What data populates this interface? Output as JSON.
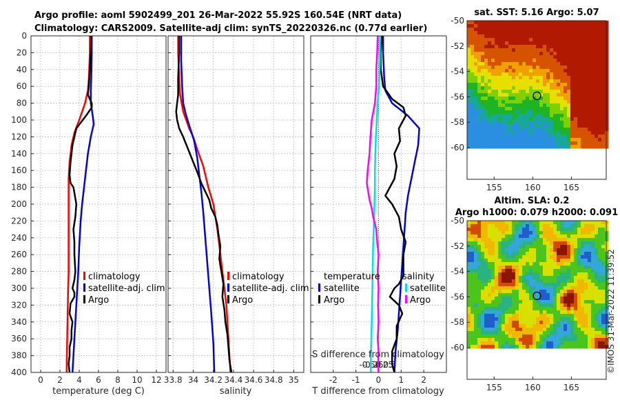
{
  "header": {
    "line1": "Argo profile: aoml 5902499_201 26-Mar-2022 55.92S 160.54E (NRT data)",
    "line2": "Climatology: CARS2009. Satellite-adj clim: synTS_20220326.nc (0.77d earlier)"
  },
  "credit": "©IMOS 31-Mar-2022 11:39:52",
  "colors": {
    "climatology": "#ff0000",
    "satellite": "#0000dd",
    "argo": "#000000",
    "sat_salinity": "#00e0e0",
    "argo_salinity": "#ff00ff"
  },
  "chart_data": [
    {
      "type": "line",
      "id": "temperature",
      "xlabel": "temperature (deg C)",
      "ylabel": "",
      "xlim": [
        -1,
        13
      ],
      "ylim": [
        400,
        0
      ],
      "xticks": [
        "0",
        "2",
        "4",
        "6",
        "8",
        "10",
        "12"
      ],
      "xtick_values": [
        0,
        2,
        4,
        6,
        8,
        10,
        12
      ],
      "yticks": [
        "0",
        "20",
        "40",
        "60",
        "80",
        "100",
        "120",
        "140",
        "160",
        "180",
        "200",
        "220",
        "240",
        "260",
        "280",
        "300",
        "320",
        "340",
        "360",
        "380",
        "400"
      ],
      "ytick_values": [
        0,
        20,
        40,
        60,
        80,
        100,
        120,
        140,
        160,
        180,
        200,
        220,
        240,
        260,
        280,
        300,
        320,
        340,
        360,
        380,
        400
      ],
      "legend": [
        "climatology",
        "satellite-adj. clim",
        "Argo"
      ],
      "series": [
        {
          "name": "climatology",
          "color": "#ff0000",
          "x": [
            5.1,
            5.1,
            5.0,
            4.9,
            4.6,
            4.0,
            3.5,
            3.2,
            3.0,
            2.9,
            2.9,
            2.9,
            2.9,
            2.85,
            2.8,
            2.75,
            2.7,
            2.7
          ],
          "y": [
            0,
            20,
            50,
            65,
            80,
            100,
            115,
            130,
            150,
            170,
            200,
            240,
            280,
            300,
            330,
            360,
            390,
            400
          ]
        },
        {
          "name": "satellite-adj. clim",
          "color": "#0000dd",
          "x": [
            5.3,
            5.3,
            5.25,
            5.2,
            5.2,
            5.4,
            5.5,
            5.2,
            4.9,
            4.7,
            4.5,
            4.3,
            4.15,
            4.0,
            3.9,
            3.8,
            3.7,
            3.6,
            3.5,
            3.4,
            3.3
          ],
          "y": [
            0,
            20,
            50,
            65,
            80,
            95,
            105,
            120,
            140,
            160,
            180,
            200,
            220,
            250,
            280,
            300,
            320,
            340,
            360,
            380,
            400
          ]
        },
        {
          "name": "Argo",
          "color": "#000000",
          "x": [
            5.25,
            5.2,
            5.1,
            5.0,
            4.9,
            5.3,
            5.3,
            4.7,
            3.7,
            3.3,
            3.1,
            3.0,
            3.1,
            3.4,
            3.7,
            3.6,
            3.4,
            3.5,
            3.5,
            3.6,
            3.5,
            3.3,
            3.5,
            3.5,
            3.1,
            3.0,
            3.3,
            3.2,
            3.2,
            3.0,
            3.0,
            2.9,
            3.0
          ],
          "y": [
            0,
            20,
            40,
            60,
            70,
            80,
            85,
            95,
            110,
            130,
            150,
            165,
            175,
            180,
            200,
            215,
            230,
            245,
            260,
            280,
            290,
            300,
            305,
            310,
            318,
            330,
            340,
            350,
            360,
            370,
            380,
            390,
            400
          ]
        }
      ]
    },
    {
      "type": "line",
      "id": "salinity",
      "xlabel": "salinity",
      "xlim": [
        33.75,
        35.1
      ],
      "ylim": [
        400,
        0
      ],
      "xticks": [
        "33.8",
        "34",
        "34.2",
        "34.4",
        "34.6",
        "34.8",
        "35"
      ],
      "xtick_values": [
        33.8,
        34.0,
        34.2,
        34.4,
        34.6,
        34.8,
        35.0
      ],
      "legend": [
        "climatology",
        "satellite-adj. clim",
        "Argo"
      ],
      "series": [
        {
          "name": "climatology",
          "color": "#ff0000",
          "x": [
            33.85,
            33.85,
            33.86,
            33.87,
            33.9,
            33.93,
            33.96,
            34.0,
            34.04,
            34.1,
            34.15,
            34.2,
            34.24,
            34.27,
            34.3,
            34.33,
            34.35,
            34.37
          ],
          "y": [
            0,
            20,
            50,
            70,
            90,
            100,
            110,
            120,
            135,
            155,
            180,
            200,
            230,
            260,
            290,
            320,
            360,
            400
          ]
        },
        {
          "name": "satellite-adj. clim",
          "color": "#0000dd",
          "x": [
            33.88,
            33.88,
            33.89,
            33.9,
            33.93,
            33.97,
            34.01,
            34.04,
            34.06,
            34.08,
            34.1,
            34.12,
            34.14,
            34.16,
            34.18,
            34.2,
            34.21
          ],
          "y": [
            0,
            30,
            60,
            80,
            95,
            110,
            125,
            145,
            165,
            185,
            210,
            240,
            270,
            300,
            330,
            365,
            400
          ]
        },
        {
          "name": "Argo",
          "color": "#000000",
          "x": [
            33.86,
            33.86,
            33.85,
            33.85,
            33.84,
            33.83,
            33.84,
            33.86,
            33.9,
            33.95,
            34.0,
            34.05,
            34.08,
            34.12,
            34.16,
            34.18,
            34.22,
            34.24,
            34.25,
            34.27,
            34.26,
            34.28,
            34.3,
            34.29,
            34.31,
            34.32,
            34.34,
            34.35,
            34.36,
            34.38
          ],
          "y": [
            0,
            20,
            50,
            70,
            80,
            90,
            100,
            110,
            120,
            135,
            150,
            165,
            175,
            185,
            195,
            205,
            215,
            225,
            235,
            250,
            265,
            280,
            295,
            310,
            325,
            340,
            355,
            370,
            385,
            400
          ]
        }
      ]
    },
    {
      "type": "line",
      "id": "difference",
      "xlabel": "T difference from climatology",
      "xlabel_top": "S difference from climatology",
      "xlim": [
        -3,
        3
      ],
      "ylim": [
        400,
        0
      ],
      "xticks": [
        "-2",
        "-1",
        "0",
        "1",
        "2"
      ],
      "xtick_values": [
        -2,
        -1,
        0,
        1,
        2
      ],
      "xticks_top": [
        "-0.5",
        "-0.25",
        "0",
        "0.25",
        "0.5"
      ],
      "xtick_top_values": [
        -0.5,
        -0.25,
        0,
        0.25,
        0.5
      ],
      "legend_left_title": "temperature",
      "legend_right_title": "salinity",
      "legend_left": [
        "satellite",
        "Argo"
      ],
      "legend_right": [
        "satellite",
        "Argo"
      ],
      "series": [
        {
          "name": "satellite",
          "group": "temperature",
          "color": "#0000dd",
          "x": [
            0.2,
            0.2,
            0.25,
            0.3,
            0.6,
            1.3,
            1.8,
            1.75,
            1.6,
            1.45,
            1.3,
            1.2,
            1.15,
            1.1,
            1.05,
            1.0,
            0.95,
            0.9,
            0.85,
            0.75,
            0.7
          ],
          "y": [
            0,
            20,
            50,
            65,
            80,
            95,
            110,
            130,
            150,
            170,
            190,
            210,
            230,
            250,
            270,
            290,
            310,
            330,
            350,
            375,
            400
          ]
        },
        {
          "name": "Argo",
          "group": "temperature",
          "color": "#000000",
          "x": [
            0.15,
            0.1,
            0.1,
            0.2,
            0.6,
            1.1,
            1.2,
            0.9,
            0.95,
            0.7,
            0.8,
            0.7,
            0.5,
            0.3,
            0.6,
            0.9,
            1.0,
            1.2,
            1.1,
            1.1,
            1.1,
            0.9,
            0.7,
            0.5,
            0.9,
            1.05,
            0.8,
            0.8,
            0.6,
            0.6,
            0.7
          ],
          "y": [
            0,
            20,
            40,
            60,
            75,
            85,
            95,
            110,
            125,
            140,
            155,
            170,
            180,
            190,
            200,
            215,
            230,
            245,
            260,
            270,
            285,
            295,
            300,
            310,
            320,
            330,
            345,
            360,
            375,
            390,
            400
          ]
        },
        {
          "name": "satellite",
          "group": "salinity",
          "color": "#00e0e0",
          "x": [
            0.03,
            0.03,
            0.01,
            -0.02,
            -0.04,
            -0.06,
            -0.07,
            -0.08,
            -0.08,
            -0.09,
            -0.1,
            -0.12,
            -0.13,
            -0.14,
            -0.15,
            -0.16,
            -0.17,
            -0.17
          ],
          "y": [
            0,
            30,
            60,
            80,
            100,
            120,
            140,
            160,
            180,
            200,
            220,
            250,
            280,
            310,
            340,
            360,
            380,
            400
          ]
        },
        {
          "name": "Argo",
          "group": "salinity",
          "color": "#ff00ff",
          "x": [
            -0.02,
            -0.03,
            -0.05,
            -0.05,
            -0.08,
            -0.15,
            -0.18,
            -0.2,
            -0.24,
            -0.26,
            -0.23,
            -0.2,
            -0.15,
            -0.12,
            -0.05,
            -0.03,
            0.0,
            -0.02,
            0.0,
            -0.01,
            0.0,
            -0.02,
            0.0,
            -0.01,
            0.0
          ],
          "y": [
            0,
            20,
            40,
            60,
            80,
            100,
            120,
            140,
            160,
            175,
            185,
            195,
            205,
            215,
            230,
            245,
            260,
            280,
            300,
            320,
            340,
            360,
            375,
            390,
            400
          ]
        }
      ]
    }
  ],
  "maps": [
    {
      "id": "sst",
      "title": "sat. SST: 5.16 Argo: 5.07",
      "xticks": [
        "155",
        "160",
        "165"
      ],
      "xtick_values": [
        155,
        160,
        165
      ],
      "yticks": [
        "-50",
        "-52",
        "-54",
        "-56",
        "-58",
        "-60"
      ],
      "ytick_values": [
        -50,
        -52,
        -54,
        -56,
        -58,
        -60
      ],
      "lon_range": [
        151.5,
        169.5
      ],
      "lat_range": [
        -62.5,
        -50
      ],
      "data_lat_min": -60,
      "marker": {
        "lon": 160.54,
        "lat": -55.92
      }
    },
    {
      "id": "sla",
      "title_line1": "Altim. SLA: 0.2",
      "title_line2": "Argo h1000: 0.079 h2000: 0.091",
      "xticks": [
        "155",
        "160",
        "165"
      ],
      "xtick_values": [
        155,
        160,
        165
      ],
      "yticks": [
        "-50",
        "-52",
        "-54",
        "-56",
        "-58",
        "-60"
      ],
      "ytick_values": [
        -50,
        -52,
        -54,
        -56,
        -58,
        -60
      ],
      "lon_range": [
        151.5,
        169.5
      ],
      "lat_range": [
        -62.5,
        -50
      ],
      "data_lat_min": -60,
      "marker": {
        "lon": 160.54,
        "lat": -55.92
      }
    }
  ]
}
